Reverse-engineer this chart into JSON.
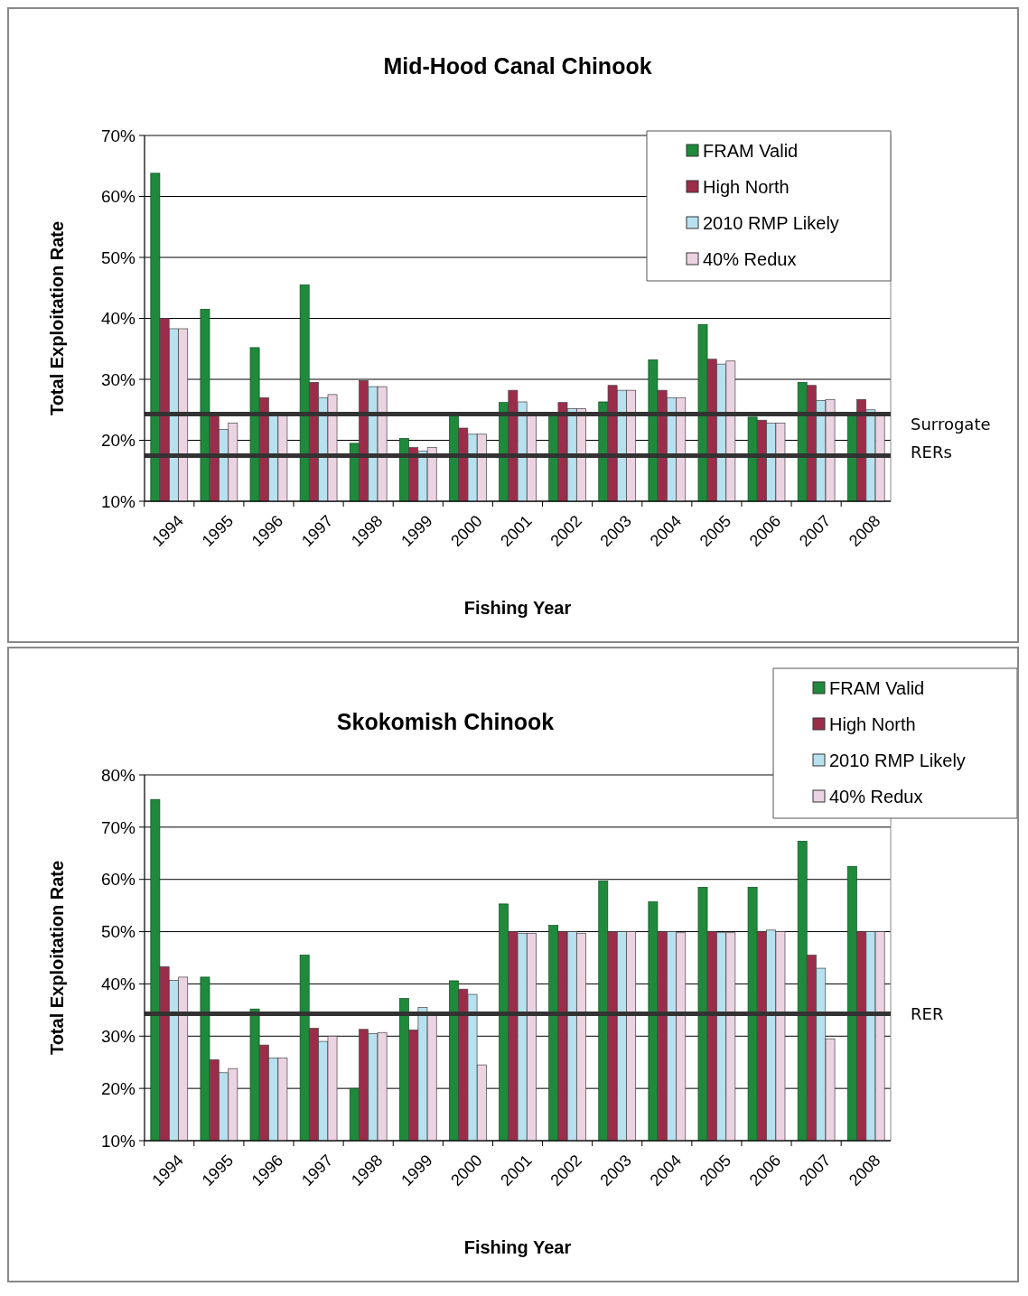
{
  "chart_data": [
    {
      "type": "bar",
      "title": "Mid-Hood Canal Chinook",
      "xlabel": "Fishing Year",
      "ylabel": "Total Exploitation Rate",
      "categories": [
        "1994",
        "1995",
        "1996",
        "1997",
        "1998",
        "1999",
        "2000",
        "2001",
        "2002",
        "2003",
        "2004",
        "2005",
        "2006",
        "2007",
        "2008"
      ],
      "series": [
        {
          "name": "FRAM Valid",
          "color": "#1f8a3c",
          "values": [
            63.8,
            41.5,
            35.2,
            45.5,
            19.5,
            20.3,
            24,
            26.2,
            24,
            26.3,
            33.2,
            39,
            23.8,
            29.5,
            24
          ]
        },
        {
          "name": "High North",
          "color": "#9b2d4a",
          "values": [
            40,
            24,
            27,
            29.5,
            29.8,
            18.8,
            22,
            28.2,
            26.2,
            29,
            28.2,
            33.3,
            23.3,
            29,
            26.7
          ]
        },
        {
          "name": "2010 RMP Likely",
          "color": "#b7e1ee",
          "values": [
            38.3,
            21.8,
            24,
            27,
            28.8,
            18.2,
            21,
            26.3,
            25.2,
            28.2,
            27,
            32.5,
            22.8,
            26.5,
            25
          ]
        },
        {
          "name": "40% Redux",
          "color": "#ecd3e2",
          "values": [
            38.3,
            22.8,
            24,
            27.5,
            28.8,
            18.8,
            21,
            24,
            25.2,
            28.2,
            27,
            33,
            22.8,
            26.7,
            24
          ]
        }
      ],
      "ylim": [
        10,
        70
      ],
      "yticks": [
        {
          "value": 10,
          "label": "10%"
        },
        {
          "value": 20,
          "label": "20%"
        },
        {
          "value": 30,
          "label": "30%"
        },
        {
          "value": 40,
          "label": "40%"
        },
        {
          "value": 50,
          "label": "50%"
        },
        {
          "value": 60,
          "label": "60%"
        },
        {
          "value": 70,
          "label": "70%"
        }
      ],
      "grid": "y",
      "legend": "top right",
      "ref_lines": [
        {
          "axis": "y",
          "value": 24.3,
          "label": "Surrogate",
          "color": "#333333"
        },
        {
          "axis": "y",
          "value": 17.5,
          "label": "RERs",
          "color": "#333333"
        }
      ]
    },
    {
      "type": "bar",
      "title": "Skokomish Chinook",
      "xlabel": "Fishing Year",
      "ylabel": "Total Exploitation Rate",
      "categories": [
        "1994",
        "1995",
        "1996",
        "1997",
        "1998",
        "1999",
        "2000",
        "2001",
        "2002",
        "2003",
        "2004",
        "2005",
        "2006",
        "2007",
        "2008"
      ],
      "series": [
        {
          "name": "FRAM Valid",
          "color": "#1f8a3c",
          "values": [
            75.3,
            41.3,
            35.2,
            45.5,
            20,
            37.2,
            40.6,
            55.3,
            51.2,
            59.7,
            55.7,
            58.5,
            58.5,
            67.3,
            62.5
          ]
        },
        {
          "name": "High North",
          "color": "#9b2d4a",
          "values": [
            43.3,
            25.5,
            28.3,
            31.5,
            31.3,
            31.2,
            39,
            50,
            50,
            50,
            50,
            50,
            50,
            45.5,
            50
          ]
        },
        {
          "name": "2010 RMP Likely",
          "color": "#b7e1ee",
          "values": [
            40.7,
            23,
            25.8,
            29,
            30.5,
            35.5,
            38,
            49.7,
            50,
            50,
            50,
            49.8,
            50.3,
            43,
            50
          ]
        },
        {
          "name": "40% Redux",
          "color": "#ecd3e2",
          "values": [
            41.3,
            23.8,
            25.8,
            30,
            30.7,
            34,
            24.5,
            49.7,
            49.7,
            50,
            49.8,
            49.8,
            50,
            29.5,
            50
          ]
        }
      ],
      "ylim": [
        10,
        80
      ],
      "yticks": [
        {
          "value": 10,
          "label": "10%"
        },
        {
          "value": 20,
          "label": "20%"
        },
        {
          "value": 30,
          "label": "30%"
        },
        {
          "value": 40,
          "label": "40%"
        },
        {
          "value": 50,
          "label": "50%"
        },
        {
          "value": 60,
          "label": "60%"
        },
        {
          "value": 70,
          "label": "70%"
        },
        {
          "value": 80,
          "label": "80%"
        }
      ],
      "grid": "y",
      "legend": "top right",
      "ref_lines": [
        {
          "axis": "y",
          "value": 34.3,
          "label": "RER",
          "color": "#333333"
        }
      ]
    }
  ]
}
